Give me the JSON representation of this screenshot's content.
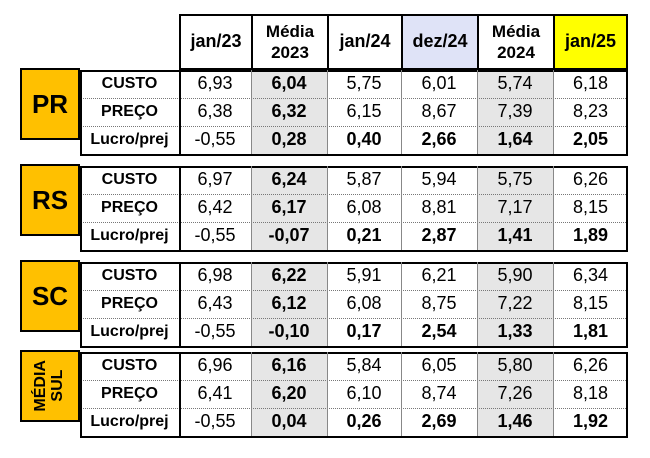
{
  "headers": [
    "jan/23",
    "Média 2023",
    "jan/24",
    "dez/24",
    "Média 2024",
    "jan/25"
  ],
  "header_colors": {
    "dez24": "#dfe3f7",
    "jan25": "#ffff00",
    "states": "#ffc000",
    "media_col": "#e6e6e6"
  },
  "row_labels": [
    "CUSTO",
    "PREÇO",
    "Lucro/prej"
  ],
  "groups": [
    {
      "state": "PR",
      "vertical": false,
      "rows": [
        [
          "6,93",
          "6,04",
          "5,75",
          "6,01",
          "5,74",
          "6,18"
        ],
        [
          "6,38",
          "6,32",
          "6,15",
          "8,67",
          "7,39",
          "8,23"
        ],
        [
          "-0,55",
          "0,28",
          "0,40",
          "2,66",
          "1,64",
          "2,05"
        ]
      ]
    },
    {
      "state": "RS",
      "vertical": false,
      "rows": [
        [
          "6,97",
          "6,24",
          "5,87",
          "5,94",
          "5,75",
          "6,26"
        ],
        [
          "6,42",
          "6,17",
          "6,08",
          "8,81",
          "7,17",
          "8,15"
        ],
        [
          "-0,55",
          "-0,07",
          "0,21",
          "2,87",
          "1,41",
          "1,89"
        ]
      ]
    },
    {
      "state": "SC",
      "vertical": false,
      "rows": [
        [
          "6,98",
          "6,22",
          "5,91",
          "6,21",
          "5,90",
          "6,34"
        ],
        [
          "6,43",
          "6,12",
          "6,08",
          "8,75",
          "7,22",
          "8,15"
        ],
        [
          "-0,55",
          "-0,10",
          "0,17",
          "2,54",
          "1,33",
          "1,81"
        ]
      ]
    },
    {
      "state": "MÉDIA SUL",
      "vertical": true,
      "rows": [
        [
          "6,96",
          "6,16",
          "5,84",
          "6,05",
          "5,80",
          "6,26"
        ],
        [
          "6,41",
          "6,20",
          "6,10",
          "8,74",
          "7,26",
          "8,18"
        ],
        [
          "-0,55",
          "0,04",
          "0,26",
          "2,69",
          "1,46",
          "1,92"
        ]
      ]
    }
  ]
}
